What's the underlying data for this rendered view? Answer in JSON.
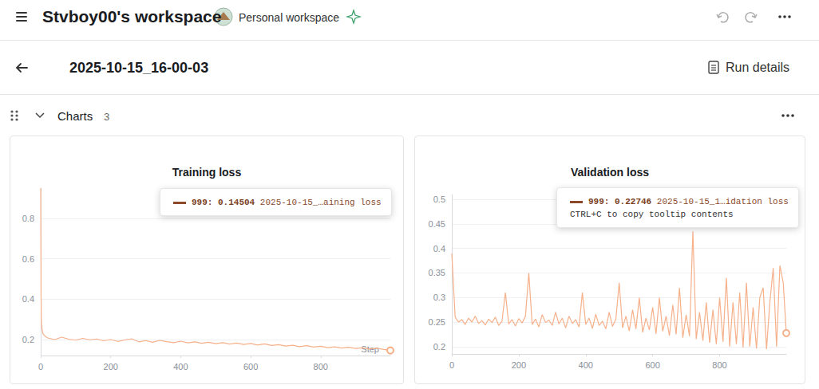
{
  "header": {
    "workspace": "Stvboy00's workspace",
    "workspace_type": "Personal workspace"
  },
  "run": {
    "name": "2025-10-15_16-00-03",
    "details": "Run details"
  },
  "section": {
    "title": "Charts",
    "count": 3
  },
  "chart_data": [
    {
      "type": "line",
      "title": "Training loss",
      "x_label": "Step",
      "color": "#f6b08a",
      "grid": true,
      "x": [
        0,
        1,
        2,
        4,
        6,
        10,
        20,
        40,
        60,
        80,
        100,
        120,
        140,
        160,
        180,
        200,
        220,
        240,
        260,
        280,
        300,
        320,
        340,
        360,
        380,
        400,
        420,
        440,
        460,
        480,
        500,
        520,
        540,
        560,
        580,
        600,
        620,
        640,
        660,
        680,
        700,
        720,
        740,
        760,
        780,
        800,
        820,
        840,
        860,
        880,
        900,
        920,
        940,
        960,
        980,
        999
      ],
      "values": [
        0.95,
        0.42,
        0.28,
        0.25,
        0.23,
        0.22,
        0.207,
        0.199,
        0.211,
        0.201,
        0.196,
        0.205,
        0.198,
        0.202,
        0.193,
        0.199,
        0.19,
        0.197,
        0.203,
        0.188,
        0.194,
        0.186,
        0.195,
        0.189,
        0.184,
        0.191,
        0.183,
        0.188,
        0.181,
        0.186,
        0.179,
        0.184,
        0.177,
        0.182,
        0.175,
        0.18,
        0.172,
        0.178,
        0.17,
        0.174,
        0.167,
        0.171,
        0.164,
        0.169,
        0.162,
        0.166,
        0.159,
        0.163,
        0.157,
        0.161,
        0.155,
        0.158,
        0.152,
        0.156,
        0.15,
        0.14504
      ],
      "xlim": [
        0,
        999
      ],
      "xticks": [
        0,
        200,
        400,
        600,
        800
      ],
      "ylim": [
        0.12,
        0.95
      ],
      "yticks": [
        0.2,
        0.4,
        0.6,
        0.8
      ],
      "tooltip": {
        "key": "999:",
        "value": 0.14504,
        "label": "2025-10-15_…aining loss"
      }
    },
    {
      "type": "line",
      "title": "Validation loss",
      "color": "#f6b08a",
      "grid": true,
      "x": [
        0,
        10,
        20,
        30,
        40,
        50,
        60,
        70,
        80,
        90,
        100,
        110,
        120,
        130,
        140,
        150,
        160,
        170,
        180,
        190,
        200,
        210,
        220,
        230,
        240,
        250,
        260,
        270,
        280,
        290,
        300,
        310,
        320,
        330,
        340,
        350,
        360,
        370,
        380,
        390,
        400,
        410,
        420,
        430,
        440,
        450,
        460,
        470,
        480,
        490,
        500,
        510,
        520,
        530,
        540,
        550,
        560,
        570,
        580,
        590,
        600,
        610,
        620,
        630,
        640,
        650,
        660,
        670,
        680,
        690,
        700,
        710,
        720,
        730,
        740,
        750,
        760,
        770,
        780,
        790,
        800,
        810,
        820,
        830,
        840,
        850,
        860,
        870,
        880,
        890,
        900,
        910,
        920,
        930,
        940,
        950,
        960,
        970,
        980,
        990,
        999
      ],
      "values": [
        0.39,
        0.26,
        0.25,
        0.255,
        0.245,
        0.258,
        0.25,
        0.262,
        0.247,
        0.253,
        0.244,
        0.256,
        0.249,
        0.26,
        0.243,
        0.252,
        0.31,
        0.246,
        0.255,
        0.242,
        0.257,
        0.248,
        0.262,
        0.35,
        0.245,
        0.256,
        0.24,
        0.265,
        0.249,
        0.254,
        0.243,
        0.27,
        0.246,
        0.258,
        0.238,
        0.262,
        0.247,
        0.255,
        0.24,
        0.31,
        0.245,
        0.258,
        0.237,
        0.266,
        0.243,
        0.252,
        0.236,
        0.27,
        0.241,
        0.256,
        0.33,
        0.238,
        0.262,
        0.232,
        0.275,
        0.236,
        0.3,
        0.229,
        0.258,
        0.234,
        0.28,
        0.226,
        0.3,
        0.231,
        0.262,
        0.222,
        0.285,
        0.225,
        0.32,
        0.218,
        0.265,
        0.221,
        0.435,
        0.215,
        0.27,
        0.212,
        0.29,
        0.208,
        0.275,
        0.205,
        0.3,
        0.21,
        0.34,
        0.2,
        0.29,
        0.205,
        0.31,
        0.198,
        0.33,
        0.2,
        0.28,
        0.196,
        0.3,
        0.32,
        0.195,
        0.29,
        0.36,
        0.2,
        0.365,
        0.33,
        0.22746
      ],
      "xlim": [
        0,
        999
      ],
      "xticks": [
        0,
        200,
        400,
        600,
        800
      ],
      "ylim": [
        0.185,
        0.51
      ],
      "yticks": [
        0.2,
        0.25,
        0.3,
        0.35,
        0.4,
        0.45,
        0.5
      ],
      "tooltip": {
        "key": "999:",
        "value": 0.22746,
        "label": "2025-10-15_1…idation loss",
        "hint": "CTRL+C to copy tooltip contents"
      }
    }
  ]
}
